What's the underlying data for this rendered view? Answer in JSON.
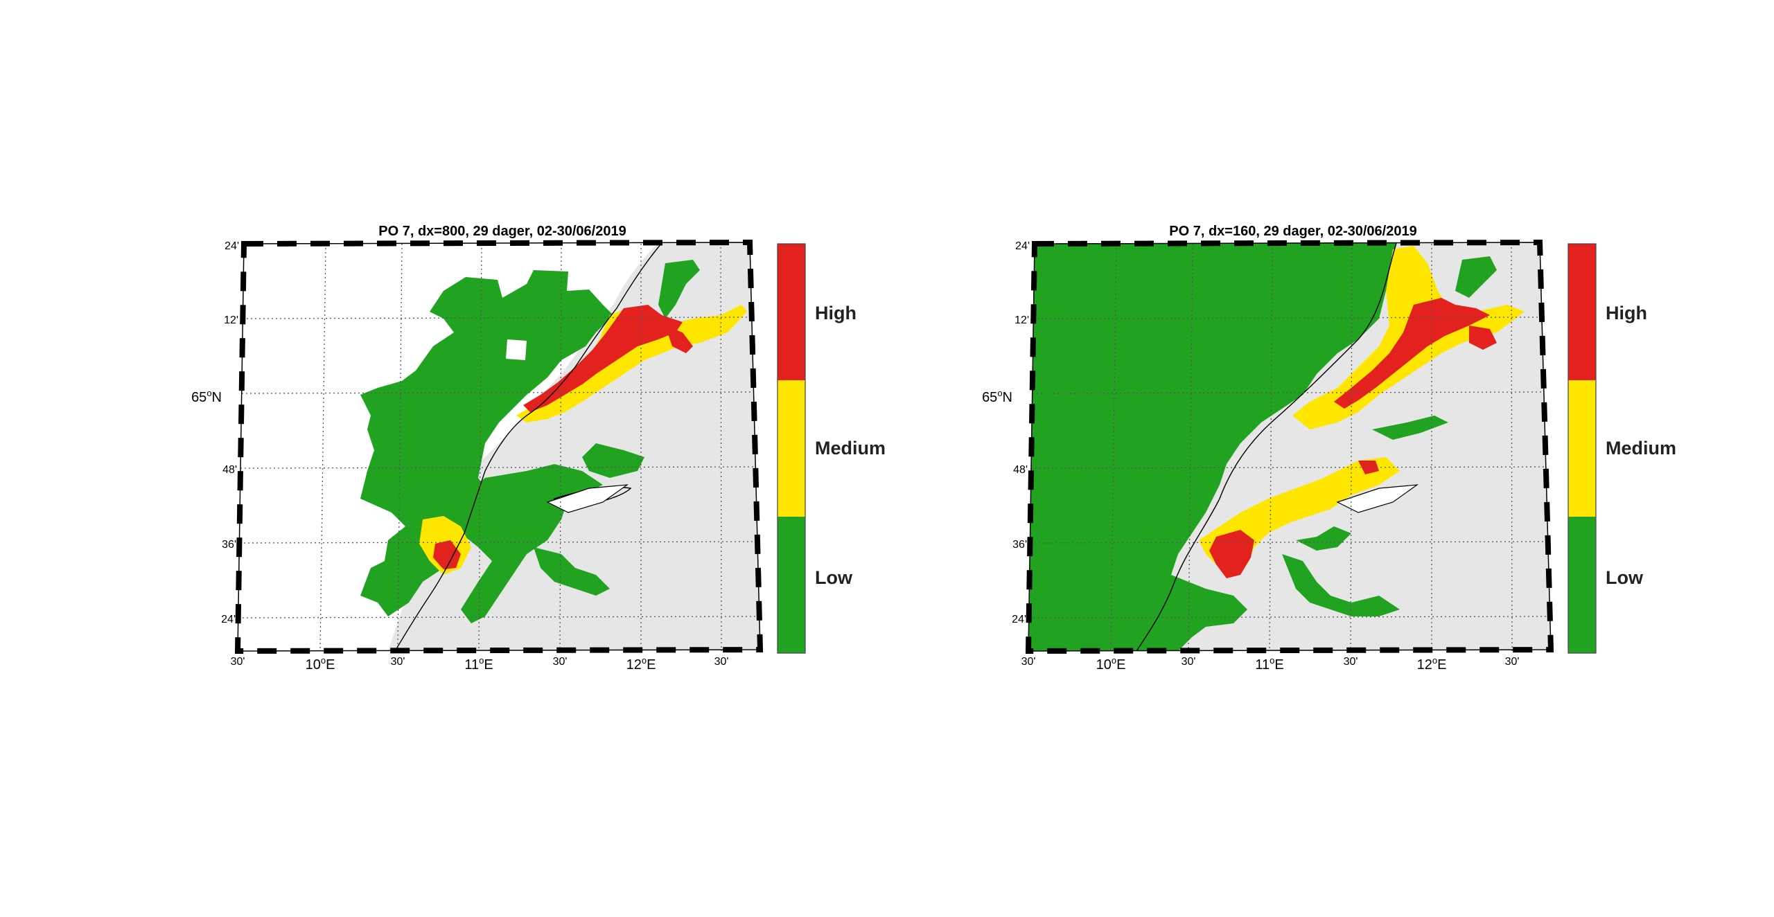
{
  "colors": {
    "high": "#e3211f",
    "medium": "#ffe600",
    "low": "#21a321",
    "land": "#e6e6e6",
    "sea": "#ffffff"
  },
  "axes": {
    "lat_labels": [
      "24'",
      "12'",
      "48'",
      "36'",
      "24'"
    ],
    "lat_main": "65",
    "lat_main_suffix": "N",
    "lon_labels": [
      "30'",
      "10",
      "30'",
      "11",
      "30'",
      "12",
      "30'"
    ],
    "lon_suffix": "E",
    "degree": "o"
  },
  "legend": {
    "high": "High",
    "medium": "Medium",
    "low": "Low"
  },
  "panels": [
    {
      "title": "PO 7, dx=800, 29 dager, 02-30/06/2019"
    },
    {
      "title": "PO 7, dx=160, 29 dager, 02-30/06/2019"
    }
  ]
}
